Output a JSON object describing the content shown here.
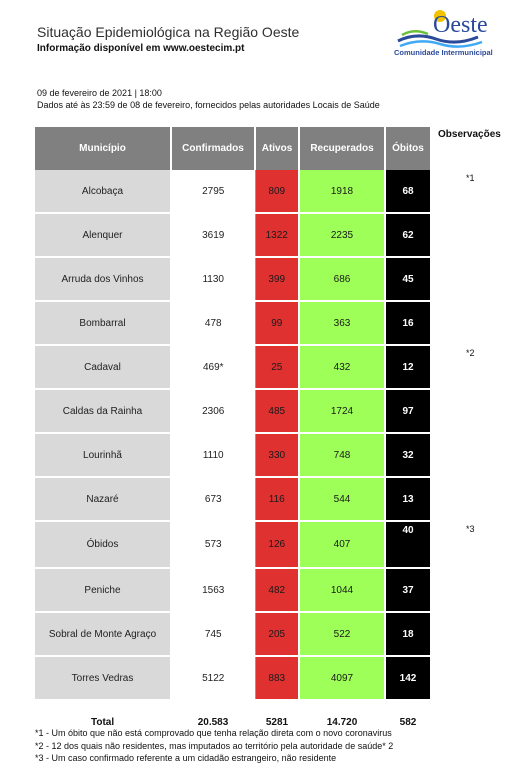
{
  "header": {
    "title": "Situação Epidemiológica na Região Oeste",
    "subtitle": "Informação disponível em www.oestecim.pt",
    "logo_word": "Oeste",
    "logo_sub": "Comunidade Intermunicipal"
  },
  "report": {
    "date": "09 de fevereiro de 2021 | 18:00",
    "source": "Dados até às 23:59 de 08 de fevereiro, fornecidos pelas autoridades Locais de Saúde"
  },
  "table": {
    "columns": [
      "Município",
      "Confirmados",
      "Ativos",
      "Recuperados",
      "Óbitos"
    ],
    "rows": [
      {
        "municipio": "Alcobaça",
        "confirmados": "2795",
        "ativos": "809",
        "recuperados": "1918",
        "obitos": "68"
      },
      {
        "municipio": "Alenquer",
        "confirmados": "3619",
        "ativos": "1322",
        "recuperados": "2235",
        "obitos": "62"
      },
      {
        "municipio": "Arruda dos Vinhos",
        "confirmados": "1130",
        "ativos": "399",
        "recuperados": "686",
        "obitos": "45"
      },
      {
        "municipio": "Bombarral",
        "confirmados": "478",
        "ativos": "99",
        "recuperados": "363",
        "obitos": "16"
      },
      {
        "municipio": "Cadaval",
        "confirmados": "469*",
        "ativos": "25",
        "recuperados": "432",
        "obitos": "12"
      },
      {
        "municipio": "Caldas da Rainha",
        "confirmados": "2306",
        "ativos": "485",
        "recuperados": "1724",
        "obitos": "97"
      },
      {
        "municipio": "Lourinhã",
        "confirmados": "1110",
        "ativos": "330",
        "recuperados": "748",
        "obitos": "32"
      },
      {
        "municipio": "Nazaré",
        "confirmados": "673",
        "ativos": "116",
        "recuperados": "544",
        "obitos": "13"
      },
      {
        "municipio": "Óbidos",
        "confirmados": "573",
        "ativos": "126",
        "recuperados": "407",
        "obitos": "40"
      },
      {
        "municipio": "Peniche",
        "confirmados": "1563",
        "ativos": "482",
        "recuperados": "1044",
        "obitos": "37"
      },
      {
        "municipio": "Sobral de Monte Agraço",
        "confirmados": "745",
        "ativos": "205",
        "recuperados": "522",
        "obitos": "18"
      },
      {
        "municipio": "Torres Vedras",
        "confirmados": "5122",
        "ativos": "883",
        "recuperados": "4097",
        "obitos": "142"
      }
    ],
    "total": {
      "label": "Total",
      "confirmados": "20.583",
      "ativos": "5281",
      "recuperados": "14.720",
      "obitos": "582"
    }
  },
  "observations": {
    "header": "Observações",
    "marks": [
      "*1",
      "*2",
      "*3"
    ]
  },
  "notes": [
    "*1 - Um óbito que não está comprovado que tenha relação direta com o novo coronavirus",
    "*2 - 12 dos quais não residentes, mas imputados ao território pela autoridade de saúde* 2",
    "*3 - Um caso confirmado referente a um cidadão estrangeiro, não residente"
  ],
  "colors": {
    "header_gray": "#808080",
    "municipio_gray": "#d9d9d9",
    "ativos_red": "#e03131",
    "recuperados_green": "#9dff57",
    "obitos_black": "#000000",
    "logo_blue": "#2b4a9a"
  }
}
